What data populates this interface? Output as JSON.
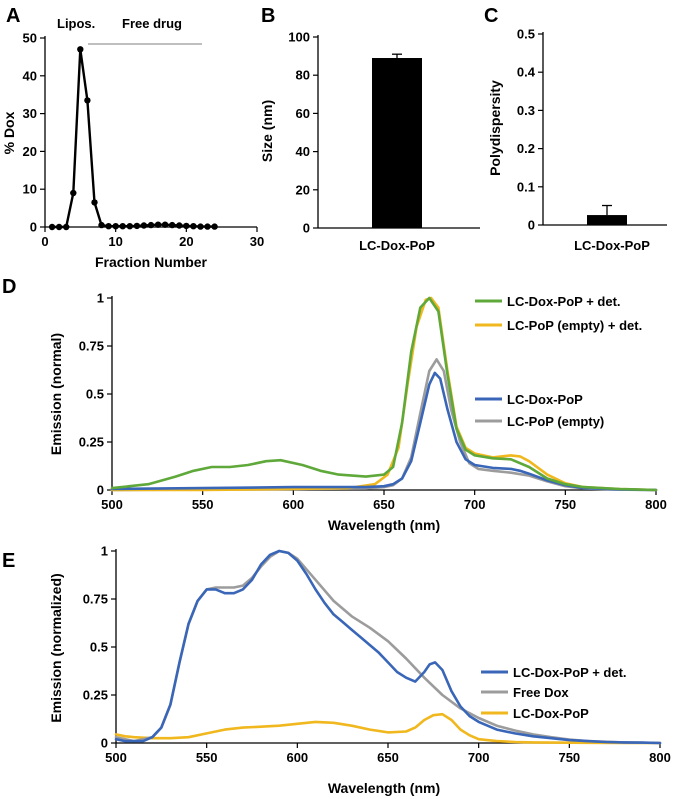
{
  "chart_data": [
    {
      "panel": "A",
      "type": "line",
      "xlabel": "Fraction Number",
      "ylabel": "% Dox",
      "xlim": [
        0,
        30
      ],
      "ylim": [
        0,
        50
      ],
      "xticks": [
        "0",
        "10",
        "20",
        "30"
      ],
      "yticks": [
        "0",
        "10",
        "20",
        "30",
        "40",
        "50"
      ],
      "region_labels": [
        "Lipos.",
        "Free drug"
      ],
      "x": [
        1,
        2,
        3,
        4,
        5,
        6,
        7,
        8,
        9,
        10,
        11,
        12,
        13,
        14,
        15,
        16,
        17,
        18,
        19,
        20,
        21,
        22,
        23,
        24
      ],
      "values": [
        0,
        0,
        0,
        9,
        47,
        33.5,
        6.5,
        0.5,
        0.2,
        0.2,
        0.2,
        0.2,
        0.3,
        0.4,
        0.5,
        0.6,
        0.6,
        0.5,
        0.4,
        0.3,
        0.2,
        0.1,
        0.1,
        0.1
      ],
      "color": "#000000"
    },
    {
      "panel": "B",
      "type": "bar",
      "categories": [
        "LC-Dox-PoP"
      ],
      "values": [
        89
      ],
      "error": [
        2
      ],
      "ylabel": "Size (nm)",
      "ylim": [
        0,
        100
      ],
      "yticks": [
        "0",
        "20",
        "40",
        "60",
        "80",
        "100"
      ],
      "color": "#000000"
    },
    {
      "panel": "C",
      "type": "bar",
      "categories": [
        "LC-Dox-PoP"
      ],
      "values": [
        0.026
      ],
      "error": [
        0.025
      ],
      "ylabel": "Polydispersity",
      "ylim": [
        0,
        0.5
      ],
      "yticks": [
        "0",
        "0.1",
        "0.2",
        "0.3",
        "0.4",
        "0.5"
      ],
      "color": "#000000"
    },
    {
      "panel": "D",
      "type": "line",
      "xlabel": "Wavelength (nm)",
      "ylabel": "Emission (normal)",
      "xlim": [
        500,
        800
      ],
      "ylim": [
        0,
        1
      ],
      "xticks": [
        "500",
        "550",
        "600",
        "650",
        "700",
        "750",
        "800"
      ],
      "yticks": [
        "0",
        "0.25",
        "0.5",
        "0.75",
        "1"
      ],
      "series": [
        {
          "name": "LC-Dox-PoP + det.",
          "color": "#5fa83a",
          "x": [
            500,
            520,
            535,
            545,
            555,
            565,
            575,
            585,
            593,
            605,
            615,
            625,
            640,
            650,
            655,
            660,
            665,
            670,
            675,
            680,
            685,
            690,
            695,
            700,
            710,
            720,
            730,
            740,
            750,
            760,
            780,
            800
          ],
          "y": [
            0.01,
            0.03,
            0.07,
            0.1,
            0.12,
            0.12,
            0.13,
            0.15,
            0.155,
            0.13,
            0.1,
            0.08,
            0.07,
            0.08,
            0.12,
            0.35,
            0.72,
            0.95,
            1.0,
            0.93,
            0.6,
            0.32,
            0.21,
            0.18,
            0.165,
            0.16,
            0.12,
            0.06,
            0.03,
            0.015,
            0.005,
            0.0
          ]
        },
        {
          "name": "LC-PoP (empty) + det.",
          "color": "#f0b81e",
          "x": [
            500,
            550,
            600,
            630,
            645,
            652,
            658,
            663,
            668,
            673,
            676,
            680,
            685,
            690,
            695,
            700,
            710,
            720,
            725,
            730,
            740,
            750,
            760,
            780,
            800
          ],
          "y": [
            0.0,
            0.0,
            0.005,
            0.01,
            0.03,
            0.08,
            0.22,
            0.55,
            0.85,
            0.99,
            1.0,
            0.95,
            0.62,
            0.33,
            0.22,
            0.19,
            0.17,
            0.18,
            0.175,
            0.15,
            0.08,
            0.035,
            0.015,
            0.005,
            0.0
          ]
        },
        {
          "name": "LC-Dox-PoP",
          "color": "#3a66b8",
          "x": [
            500,
            550,
            600,
            640,
            650,
            655,
            660,
            665,
            670,
            675,
            678,
            681,
            685,
            690,
            695,
            700,
            710,
            720,
            725,
            730,
            740,
            750,
            760,
            780,
            800
          ],
          "y": [
            0.005,
            0.01,
            0.015,
            0.015,
            0.02,
            0.03,
            0.06,
            0.15,
            0.35,
            0.55,
            0.61,
            0.58,
            0.42,
            0.25,
            0.16,
            0.13,
            0.115,
            0.11,
            0.1,
            0.085,
            0.05,
            0.025,
            0.01,
            0.003,
            0.0
          ]
        },
        {
          "name": "LC-PoP (empty)",
          "color": "#9c9c9c",
          "x": [
            500,
            550,
            600,
            640,
            650,
            655,
            660,
            665,
            670,
            675,
            679,
            683,
            687,
            692,
            697,
            702,
            710,
            720,
            730,
            740,
            750,
            760,
            780,
            800
          ],
          "y": [
            0.0,
            0.003,
            0.005,
            0.008,
            0.015,
            0.025,
            0.06,
            0.17,
            0.4,
            0.62,
            0.68,
            0.62,
            0.42,
            0.25,
            0.14,
            0.11,
            0.1,
            0.09,
            0.075,
            0.045,
            0.02,
            0.008,
            0.002,
            0.0
          ]
        }
      ]
    },
    {
      "panel": "E",
      "type": "line",
      "xlabel": "Wavelength (nm)",
      "ylabel": "Emission (normalized)",
      "xlim": [
        500,
        800
      ],
      "ylim": [
        0,
        1
      ],
      "xticks": [
        "500",
        "550",
        "600",
        "650",
        "700",
        "750",
        "800"
      ],
      "yticks": [
        "0",
        "0.25",
        "0.5",
        "0.75",
        "1"
      ],
      "series": [
        {
          "name": "LC-Dox-PoP + det.",
          "color": "#3a66b8",
          "x": [
            500,
            505,
            510,
            515,
            520,
            525,
            530,
            535,
            540,
            545,
            550,
            555,
            560,
            565,
            570,
            575,
            580,
            585,
            590,
            595,
            600,
            605,
            610,
            615,
            620,
            625,
            630,
            635,
            640,
            645,
            650,
            655,
            660,
            665,
            670,
            673,
            676,
            680,
            685,
            690,
            695,
            700,
            710,
            720,
            730,
            740,
            750,
            760,
            770,
            780,
            790,
            800
          ],
          "y": [
            0.02,
            0.01,
            0.01,
            0.01,
            0.03,
            0.08,
            0.2,
            0.42,
            0.62,
            0.74,
            0.8,
            0.8,
            0.78,
            0.78,
            0.8,
            0.85,
            0.93,
            0.98,
            1.0,
            0.99,
            0.95,
            0.88,
            0.8,
            0.73,
            0.67,
            0.63,
            0.59,
            0.55,
            0.51,
            0.47,
            0.42,
            0.37,
            0.34,
            0.32,
            0.37,
            0.41,
            0.42,
            0.38,
            0.27,
            0.19,
            0.14,
            0.11,
            0.07,
            0.05,
            0.035,
            0.025,
            0.015,
            0.01,
            0.005,
            0.003,
            0.002,
            0.0
          ]
        },
        {
          "name": "Free Dox",
          "color": "#9c9c9c",
          "x": [
            500,
            510,
            520,
            525,
            530,
            535,
            540,
            545,
            550,
            555,
            560,
            565,
            570,
            575,
            580,
            585,
            590,
            595,
            600,
            610,
            620,
            630,
            640,
            650,
            660,
            670,
            680,
            690,
            700,
            710,
            720,
            730,
            740,
            750,
            760,
            780,
            800
          ],
          "y": [
            0.03,
            0.01,
            0.03,
            0.08,
            0.2,
            0.42,
            0.62,
            0.74,
            0.8,
            0.81,
            0.81,
            0.81,
            0.82,
            0.86,
            0.92,
            0.97,
            1.0,
            0.99,
            0.96,
            0.85,
            0.74,
            0.66,
            0.6,
            0.53,
            0.44,
            0.34,
            0.25,
            0.18,
            0.13,
            0.09,
            0.065,
            0.045,
            0.03,
            0.018,
            0.01,
            0.003,
            0.0
          ]
        },
        {
          "name": "LC-Dox-PoP",
          "color": "#f0b81e",
          "x": [
            500,
            505,
            510,
            520,
            530,
            540,
            550,
            560,
            570,
            580,
            590,
            600,
            610,
            620,
            630,
            640,
            650,
            660,
            665,
            670,
            675,
            680,
            685,
            690,
            695,
            700,
            710,
            720,
            730,
            740,
            760,
            780,
            800
          ],
          "y": [
            0.045,
            0.035,
            0.03,
            0.025,
            0.025,
            0.03,
            0.05,
            0.07,
            0.08,
            0.085,
            0.09,
            0.1,
            0.11,
            0.105,
            0.09,
            0.07,
            0.055,
            0.06,
            0.08,
            0.12,
            0.145,
            0.15,
            0.12,
            0.07,
            0.04,
            0.02,
            0.01,
            0.005,
            0.003,
            0.002,
            0.001,
            0.0,
            0.0
          ]
        }
      ]
    }
  ]
}
